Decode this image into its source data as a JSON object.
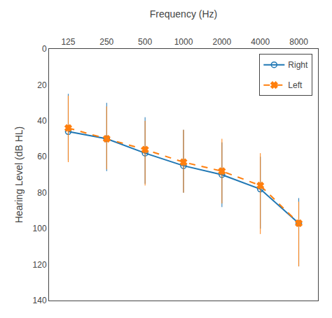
{
  "chart_data": {
    "type": "line",
    "xlabel": "Frequency (Hz)",
    "ylabel": "Hearing Level (dB HL)",
    "categories": [
      "125",
      "250",
      "500",
      "1000",
      "2000",
      "4000",
      "8000"
    ],
    "series": [
      {
        "name": "Right",
        "values": [
          46,
          50,
          58,
          65,
          70,
          78,
          97
        ],
        "sd_upper": [
          25,
          30,
          38,
          45,
          52,
          60,
          83
        ],
        "sd_lower": [
          62,
          68,
          75,
          80,
          88,
          100,
          121
        ],
        "marker": "circle-open",
        "line_style": "solid"
      },
      {
        "name": "Left",
        "values": [
          44,
          50,
          56,
          63,
          68,
          76,
          97
        ],
        "sd_upper": [
          26,
          32,
          40,
          45,
          50,
          58,
          85
        ],
        "sd_lower": [
          63,
          67,
          76,
          80,
          86,
          103,
          121
        ],
        "marker": "x",
        "line_style": "dash"
      }
    ],
    "ylim": [
      0,
      140
    ],
    "yticks": [
      0,
      20,
      40,
      60,
      80,
      100,
      120,
      140
    ],
    "grid": false,
    "legend": "upper right"
  }
}
